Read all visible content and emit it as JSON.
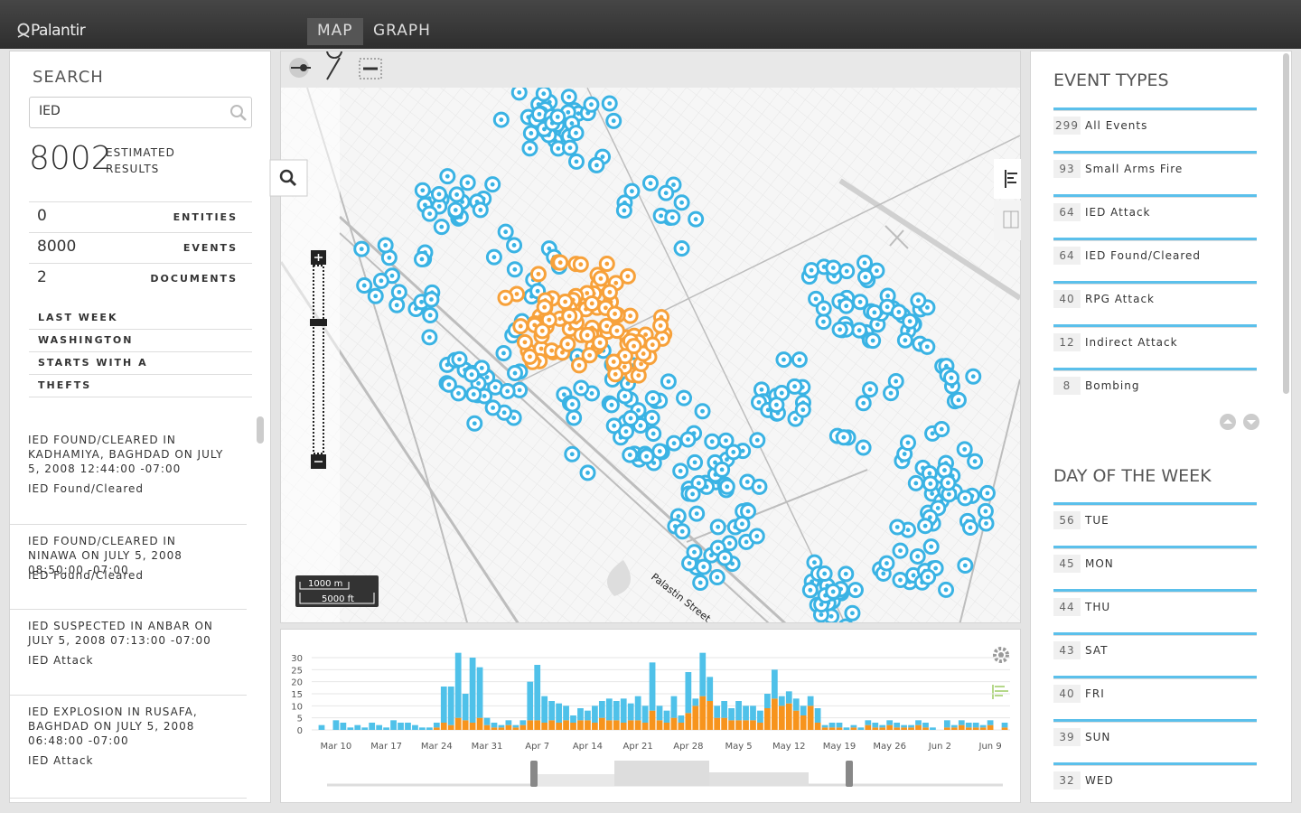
{
  "header": {
    "logo": "Palantir",
    "tabs": [
      "MAP",
      "GRAPH"
    ]
  },
  "search": {
    "title": "SEARCH",
    "query": "IED",
    "count": 8002,
    "count_label": "ESTIMATED RESULTS",
    "stats": [
      {
        "value": 0,
        "label": "ENTITIES"
      },
      {
        "value": 8000,
        "label": "EVENTS"
      },
      {
        "value": 2,
        "label": "DOCUMENTS"
      }
    ],
    "filters": [
      "LAST WEEK",
      "WASHINGTON",
      "STARTS WITH A",
      "THEFTS"
    ],
    "results": [
      {
        "title": "IED FOUND/CLEARED IN KADHAMIYA, BAGHDAD ON JULY 5, 2008 12:44:00 -07:00",
        "type": "IED Found/Cleared"
      },
      {
        "title": "IED FOUND/CLEARED IN NINAWA ON JULY 5, 2008 08:50:00 -07:00",
        "type": "IED Found/Cleared"
      },
      {
        "title": "IED SUSPECTED IN ANBAR ON JULY 5, 2008 07:13:00 -07:00",
        "type": "IED Attack"
      },
      {
        "title": "IED EXPLOSION IN RUSAFA, BAGHDAD ON JULY 5, 2008 06:48:00 -07:00",
        "type": "IED Attack"
      }
    ]
  },
  "map": {
    "street": "Palastin Street",
    "scale": [
      "1000 m",
      "5000 ft"
    ]
  },
  "timeline": {
    "type": "bar",
    "grid": true,
    "ylim": [
      0,
      33
    ],
    "yticks": [
      0,
      5,
      10,
      15,
      20,
      25,
      30
    ],
    "categories": [
      null,
      null,
      "Mar 10",
      null,
      null,
      null,
      null,
      null,
      null,
      "Mar 17",
      null,
      null,
      null,
      null,
      null,
      null,
      "Mar 24",
      null,
      null,
      null,
      null,
      null,
      null,
      "Mar 31",
      null,
      null,
      null,
      null,
      null,
      null,
      "Apr 7",
      null,
      null,
      null,
      null,
      null,
      null,
      "Apr 14",
      null,
      null,
      null,
      null,
      null,
      null,
      "Apr 21",
      null,
      null,
      null,
      null,
      null,
      null,
      "Apr 28",
      null,
      null,
      null,
      null,
      null,
      null,
      "May 5",
      null,
      null,
      null,
      null,
      null,
      null,
      "May 12",
      null,
      null,
      null,
      null,
      null,
      null,
      "May 19",
      null,
      null,
      null,
      null,
      null,
      null,
      "May 26",
      null,
      null,
      null,
      null,
      null,
      null,
      "Jun 2",
      null,
      null,
      null,
      null,
      null,
      null,
      "Jun 9",
      null,
      null
    ],
    "series": [
      {
        "color": "#f7941d",
        "values": [
          0,
          0,
          0,
          0,
          0,
          0,
          0,
          0,
          0,
          0,
          0,
          0,
          0,
          0,
          0,
          0,
          1,
          3,
          2,
          5,
          4,
          3,
          5,
          2,
          1,
          1,
          2,
          1,
          2,
          4,
          4,
          3,
          4,
          3,
          4,
          3,
          4,
          4,
          3,
          5,
          4,
          4,
          3,
          4,
          4,
          3,
          8,
          4,
          3,
          5,
          3,
          7,
          10,
          14,
          12,
          5,
          5,
          4,
          4,
          4,
          4,
          3,
          9,
          13,
          10,
          11,
          8,
          6,
          10,
          3,
          1,
          1,
          1,
          0,
          1,
          0,
          2,
          1,
          1,
          2,
          1,
          1,
          1,
          2,
          1,
          0,
          0,
          1,
          1,
          2,
          1,
          1,
          1,
          2,
          0,
          1
        ]
      },
      {
        "color": "#4fc1e9",
        "values": [
          2,
          0,
          4,
          3,
          1,
          2,
          1,
          3,
          2,
          1,
          4,
          3,
          3,
          2,
          1,
          1,
          2,
          15,
          16,
          27,
          11,
          27,
          21,
          3,
          2,
          1,
          2,
          1,
          2,
          16,
          23,
          11,
          8,
          8,
          6,
          3,
          5,
          4,
          7,
          7,
          9,
          8,
          10,
          7,
          10,
          7,
          20,
          6,
          5,
          9,
          3,
          17,
          3,
          18,
          10,
          5,
          7,
          5,
          8,
          6,
          6,
          5,
          6,
          12,
          4,
          5,
          5,
          4,
          4,
          6,
          1,
          2,
          2,
          1,
          1,
          1,
          2,
          2,
          1,
          2,
          2,
          1,
          1,
          2,
          2,
          1,
          0,
          3,
          1,
          2,
          2,
          2,
          1,
          2,
          0,
          2
        ]
      }
    ]
  },
  "event_types": {
    "title": "EVENT TYPES",
    "items": [
      {
        "count": 299,
        "label": "All Events"
      },
      {
        "count": 93,
        "label": "Small Arms Fire"
      },
      {
        "count": 64,
        "label": "IED Attack"
      },
      {
        "count": 64,
        "label": "IED Found/Cleared"
      },
      {
        "count": 40,
        "label": "RPG Attack"
      },
      {
        "count": 12,
        "label": "Indirect Attack"
      },
      {
        "count": 8,
        "label": "Bombing"
      }
    ]
  },
  "day_of_week": {
    "title": "DAY OF THE WEEK",
    "items": [
      {
        "count": 56,
        "label": "TUE"
      },
      {
        "count": 45,
        "label": "MON"
      },
      {
        "count": 44,
        "label": "THU"
      },
      {
        "count": 43,
        "label": "SAT"
      },
      {
        "count": 40,
        "label": "FRI"
      },
      {
        "count": 39,
        "label": "SUN"
      },
      {
        "count": 32,
        "label": "WED"
      }
    ]
  }
}
